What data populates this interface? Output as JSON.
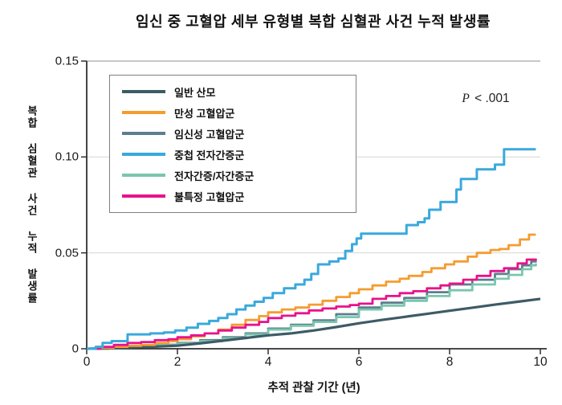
{
  "title": "임신 중 고혈압 세부 유형별 복합 심혈관 사건 누적 발생률",
  "annotation": {
    "italic": "P",
    "text": " < .001",
    "full": "P < .001"
  },
  "chart_data": {
    "type": "line",
    "subtype": "cumulative-incidence-step-curves",
    "title": "임신 중 고혈압 세부 유형별 복합 심혈관 사건 누적 발생률",
    "xlabel": "추적 관찰 기간 (년)",
    "ylabel": "복합 심혈관 사건 누적 발생률",
    "xlim": [
      0,
      10
    ],
    "ylim": [
      0,
      0.15
    ],
    "x_ticks": [
      "0",
      "2",
      "4",
      "6",
      "8",
      "10"
    ],
    "x_tick_values": [
      0,
      2,
      4,
      6,
      8,
      10
    ],
    "y_ticks": [
      "0",
      "0.05",
      "0.10",
      "0.15"
    ],
    "y_tick_values": [
      0,
      0.05,
      0.1,
      0.15
    ],
    "grid": "horizontal-gridlines-at-0.05-0.10-0.15",
    "legend_position": "upper-left",
    "annotation": "P < .001",
    "series": [
      {
        "name": "일반 산모",
        "color": "#3d5b66",
        "style": "line",
        "width": 3.2,
        "zorder": 3,
        "points": [
          [
            0,
            0
          ],
          [
            0.5,
            0.0003
          ],
          [
            1,
            0.0007
          ],
          [
            1.5,
            0.0011
          ],
          [
            2,
            0.0016
          ],
          [
            2.5,
            0.0028
          ],
          [
            3,
            0.0042
          ],
          [
            3.5,
            0.0056
          ],
          [
            4,
            0.007
          ],
          [
            4.5,
            0.008
          ],
          [
            5,
            0.0095
          ],
          [
            5.5,
            0.0113
          ],
          [
            6,
            0.0133
          ],
          [
            6.5,
            0.015
          ],
          [
            7,
            0.0166
          ],
          [
            7.5,
            0.0182
          ],
          [
            8,
            0.0198
          ],
          [
            8.5,
            0.0214
          ],
          [
            9,
            0.023
          ],
          [
            9.5,
            0.0245
          ],
          [
            10,
            0.026
          ]
        ]
      },
      {
        "name": "만성 고혈압군",
        "color": "#f59c2f",
        "style": "step",
        "width": 2.8,
        "zorder": 4,
        "points": [
          [
            0,
            0
          ],
          [
            0.3,
            0.0005
          ],
          [
            0.6,
            0.001
          ],
          [
            0.9,
            0.0015
          ],
          [
            1.2,
            0.002
          ],
          [
            1.5,
            0.003
          ],
          [
            1.8,
            0.004
          ],
          [
            2.0,
            0.005
          ],
          [
            2.3,
            0.0065
          ],
          [
            2.6,
            0.008
          ],
          [
            2.9,
            0.01
          ],
          [
            3.2,
            0.0125
          ],
          [
            3.5,
            0.015
          ],
          [
            3.8,
            0.017
          ],
          [
            4.0,
            0.019
          ],
          [
            4.3,
            0.0205
          ],
          [
            4.6,
            0.0215
          ],
          [
            4.9,
            0.023
          ],
          [
            5.2,
            0.025
          ],
          [
            5.5,
            0.027
          ],
          [
            5.8,
            0.029
          ],
          [
            6.0,
            0.031
          ],
          [
            6.3,
            0.033
          ],
          [
            6.6,
            0.035
          ],
          [
            6.9,
            0.0365
          ],
          [
            7.1,
            0.038
          ],
          [
            7.4,
            0.04
          ],
          [
            7.6,
            0.042
          ],
          [
            7.9,
            0.044
          ],
          [
            8.1,
            0.0455
          ],
          [
            8.4,
            0.048
          ],
          [
            8.6,
            0.05
          ],
          [
            8.9,
            0.0515
          ],
          [
            9.1,
            0.052
          ],
          [
            9.3,
            0.054
          ],
          [
            9.55,
            0.057
          ],
          [
            9.75,
            0.0595
          ],
          [
            9.9,
            0.0595
          ]
        ]
      },
      {
        "name": "임신성 고혈압군",
        "color": "#5d7e8c",
        "style": "step",
        "width": 2.8,
        "zorder": 1,
        "points": [
          [
            0,
            0
          ],
          [
            0.5,
            0.0008
          ],
          [
            1.0,
            0.0014
          ],
          [
            1.5,
            0.0021
          ],
          [
            2.0,
            0.003
          ],
          [
            2.5,
            0.0045
          ],
          [
            3.0,
            0.006
          ],
          [
            3.5,
            0.008
          ],
          [
            4.0,
            0.0105
          ],
          [
            4.5,
            0.0125
          ],
          [
            5.0,
            0.0148
          ],
          [
            5.5,
            0.018
          ],
          [
            6.0,
            0.0215
          ],
          [
            6.5,
            0.024
          ],
          [
            7.0,
            0.0265
          ],
          [
            7.5,
            0.0295
          ],
          [
            8.0,
            0.0335
          ],
          [
            8.5,
            0.036
          ],
          [
            9.0,
            0.039
          ],
          [
            9.3,
            0.0415
          ],
          [
            9.6,
            0.0435
          ],
          [
            9.8,
            0.0455
          ],
          [
            9.9,
            0.046
          ]
        ]
      },
      {
        "name": "중첩 전자간증군",
        "color": "#3aa9dc",
        "style": "step",
        "width": 3,
        "zorder": 6,
        "points": [
          [
            0,
            0
          ],
          [
            0.2,
            0.001
          ],
          [
            0.35,
            0.003
          ],
          [
            0.55,
            0.004
          ],
          [
            0.9,
            0.0075
          ],
          [
            1.4,
            0.008
          ],
          [
            1.7,
            0.0085
          ],
          [
            1.95,
            0.0095
          ],
          [
            2.2,
            0.011
          ],
          [
            2.45,
            0.013
          ],
          [
            2.7,
            0.0145
          ],
          [
            2.9,
            0.016
          ],
          [
            3.1,
            0.018
          ],
          [
            3.3,
            0.0205
          ],
          [
            3.5,
            0.0225
          ],
          [
            3.7,
            0.0245
          ],
          [
            3.9,
            0.0265
          ],
          [
            4.1,
            0.029
          ],
          [
            4.35,
            0.0315
          ],
          [
            4.6,
            0.0335
          ],
          [
            4.8,
            0.036
          ],
          [
            4.95,
            0.039
          ],
          [
            5.1,
            0.044
          ],
          [
            5.35,
            0.0455
          ],
          [
            5.55,
            0.047
          ],
          [
            5.7,
            0.051
          ],
          [
            5.85,
            0.0545
          ],
          [
            5.95,
            0.0575
          ],
          [
            6.05,
            0.06
          ],
          [
            7.05,
            0.0645
          ],
          [
            7.3,
            0.066
          ],
          [
            7.45,
            0.068
          ],
          [
            7.55,
            0.0725
          ],
          [
            7.8,
            0.0765
          ],
          [
            8.15,
            0.083
          ],
          [
            8.25,
            0.0885
          ],
          [
            8.6,
            0.0935
          ],
          [
            9.0,
            0.096
          ],
          [
            9.2,
            0.104
          ],
          [
            9.9,
            0.104
          ]
        ]
      },
      {
        "name": "전자간증/자간증군",
        "color": "#79c6ae",
        "style": "step",
        "width": 2.8,
        "zorder": 2,
        "points": [
          [
            0,
            0
          ],
          [
            0.5,
            0.0007
          ],
          [
            1.0,
            0.0012
          ],
          [
            1.5,
            0.0019
          ],
          [
            2.0,
            0.0027
          ],
          [
            2.5,
            0.004
          ],
          [
            3.0,
            0.0055
          ],
          [
            3.5,
            0.0075
          ],
          [
            4.0,
            0.01
          ],
          [
            4.5,
            0.012
          ],
          [
            5.0,
            0.014
          ],
          [
            5.5,
            0.0165
          ],
          [
            6.0,
            0.0205
          ],
          [
            6.5,
            0.0225
          ],
          [
            7.0,
            0.025
          ],
          [
            7.5,
            0.0275
          ],
          [
            8.0,
            0.0305
          ],
          [
            8.5,
            0.0335
          ],
          [
            9.0,
            0.0365
          ],
          [
            9.3,
            0.0385
          ],
          [
            9.6,
            0.0415
          ],
          [
            9.8,
            0.0435
          ],
          [
            9.9,
            0.0445
          ]
        ]
      },
      {
        "name": "불특정 고혈압군",
        "color": "#e8128c",
        "style": "step",
        "width": 2.8,
        "zorder": 5,
        "points": [
          [
            0,
            0
          ],
          [
            0.3,
            0.001
          ],
          [
            0.6,
            0.002
          ],
          [
            0.9,
            0.003
          ],
          [
            1.2,
            0.0035
          ],
          [
            1.5,
            0.0045
          ],
          [
            1.8,
            0.005
          ],
          [
            2.0,
            0.006
          ],
          [
            2.3,
            0.007
          ],
          [
            2.6,
            0.008
          ],
          [
            2.9,
            0.0095
          ],
          [
            3.2,
            0.011
          ],
          [
            3.5,
            0.0125
          ],
          [
            3.8,
            0.014
          ],
          [
            4.0,
            0.016
          ],
          [
            4.3,
            0.0172
          ],
          [
            4.6,
            0.0185
          ],
          [
            4.9,
            0.02
          ],
          [
            5.2,
            0.021
          ],
          [
            5.5,
            0.022
          ],
          [
            5.8,
            0.0228
          ],
          [
            6.0,
            0.0235
          ],
          [
            6.3,
            0.026
          ],
          [
            6.6,
            0.0275
          ],
          [
            6.9,
            0.029
          ],
          [
            7.2,
            0.03
          ],
          [
            7.5,
            0.0315
          ],
          [
            7.8,
            0.033
          ],
          [
            8.0,
            0.034
          ],
          [
            8.3,
            0.036
          ],
          [
            8.6,
            0.038
          ],
          [
            8.9,
            0.0405
          ],
          [
            9.2,
            0.042
          ],
          [
            9.5,
            0.0445
          ],
          [
            9.7,
            0.0465
          ],
          [
            9.9,
            0.047
          ]
        ]
      }
    ],
    "colors": {
      "axis": "#2f2f2f",
      "gridline": "#d9d9d9",
      "top_border": "#a6a6a6",
      "legend_border": "#7f7f7f"
    }
  }
}
